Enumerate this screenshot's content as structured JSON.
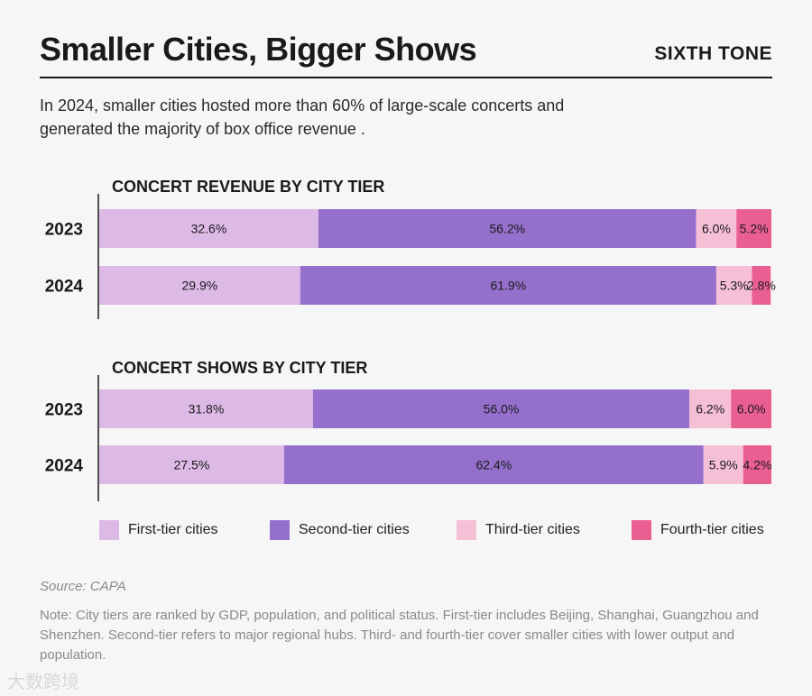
{
  "header": {
    "title": "Smaller Cities, Bigger Shows",
    "brand": "SIXTH TONE",
    "subtitle": "In 2024, smaller cities hosted more than 60% of large-scale concerts and generated the majority of box office revenue ."
  },
  "colors": {
    "first_tier": "#ddb9e6",
    "second_tier": "#9470cc",
    "third_tier": "#f5bfd6",
    "fourth_tier": "#ea5f92"
  },
  "chart_data": [
    {
      "type": "bar",
      "orientation": "horizontal",
      "stacked": true,
      "title": "CONCERT REVENUE BY CITY TIER",
      "categories": [
        "2023",
        "2024"
      ],
      "xlim": [
        0,
        100
      ],
      "series": [
        {
          "name": "First-tier cities",
          "values": [
            32.6,
            29.9
          ]
        },
        {
          "name": "Second-tier cities",
          "values": [
            56.2,
            61.9
          ]
        },
        {
          "name": "Third-tier cities",
          "values": [
            6.0,
            5.3
          ]
        },
        {
          "name": "Fourth-tier cities",
          "values": [
            5.2,
            2.8
          ]
        }
      ],
      "labels": [
        [
          "32.6%",
          "56.2%",
          "6.0%",
          "5.2%"
        ],
        [
          "29.9%",
          "61.9%",
          "5.3%",
          "2.8%"
        ]
      ]
    },
    {
      "type": "bar",
      "orientation": "horizontal",
      "stacked": true,
      "title": "CONCERT SHOWS BY CITY TIER",
      "categories": [
        "2023",
        "2024"
      ],
      "xlim": [
        0,
        100
      ],
      "series": [
        {
          "name": "First-tier cities",
          "values": [
            31.8,
            27.5
          ]
        },
        {
          "name": "Second-tier cities",
          "values": [
            56.0,
            62.4
          ]
        },
        {
          "name": "Third-tier cities",
          "values": [
            6.2,
            5.9
          ]
        },
        {
          "name": "Fourth-tier cities",
          "values": [
            6.0,
            4.2
          ]
        }
      ],
      "labels": [
        [
          "31.8%",
          "56.0%",
          "6.2%",
          "6.0%"
        ],
        [
          "27.5%",
          "62.4%",
          "5.9%",
          "4.2%"
        ]
      ]
    }
  ],
  "legend": {
    "position": "bottom",
    "items": [
      "First-tier cities",
      "Second-tier cities",
      "Third-tier cities",
      "Fourth-tier cities"
    ]
  },
  "footer": {
    "source": "Source: CAPA",
    "note": "Note: City tiers are ranked by GDP, population, and political status. First-tier includes Beijing, Shanghai, Guangzhou and Shenzhen. Second-tier refers to major regional hubs. Third- and fourth-tier cover smaller cities with lower output and population."
  },
  "watermark": "大数跨境"
}
